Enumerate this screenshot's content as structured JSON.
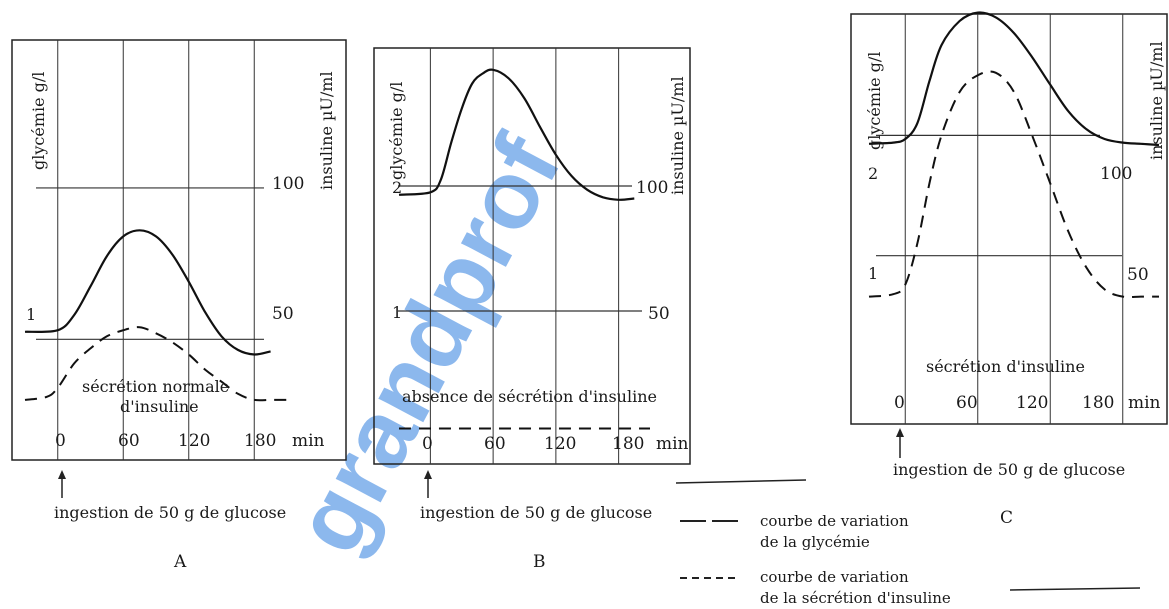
{
  "watermark": "grandprof",
  "legend": {
    "solid_label_1": "courbe de variation",
    "solid_label_2": "de la glycémie",
    "dashed_label_1": "courbe de variation",
    "dashed_label_2": "de la sécrétion d'insuline"
  },
  "chart_data": [
    {
      "panel_letter": "A",
      "type": "line",
      "ylabel_left": "glycémie g/l",
      "ylabel_right": "insuline µU/ml",
      "xunit": "min",
      "x_ticks": [
        "0",
        "60",
        "120",
        "180"
      ],
      "left_ticks": [
        "1"
      ],
      "right_ticks": [
        "50",
        "100"
      ],
      "annotation_1": "sécrétion normale",
      "annotation_2": "d'insuline",
      "arrow_label": "ingestion de 50 g de glucose",
      "xlim": [
        -30,
        210
      ],
      "ylim_glycemie": [
        0.5,
        2.7
      ],
      "ylim_insuline": [
        25,
        135
      ],
      "series": [
        {
          "style": "solid",
          "axis": "glycemie",
          "x": [
            -30,
            0,
            15,
            30,
            45,
            60,
            75,
            90,
            105,
            120,
            135,
            150,
            165,
            180,
            195
          ],
          "y": [
            1.05,
            1.06,
            1.16,
            1.35,
            1.55,
            1.68,
            1.72,
            1.68,
            1.56,
            1.38,
            1.18,
            1.02,
            0.93,
            0.9,
            0.92
          ]
        },
        {
          "style": "dashed",
          "axis": "insuline",
          "x": [
            -30,
            -10,
            0,
            15,
            30,
            45,
            60,
            75,
            90,
            105,
            120,
            135,
            150,
            165,
            180,
            195,
            210
          ],
          "y": [
            30,
            31,
            34,
            42,
            47,
            51,
            53,
            54,
            52,
            49,
            45,
            40,
            36,
            32,
            30,
            30,
            30
          ]
        }
      ]
    },
    {
      "panel_letter": "B",
      "type": "line",
      "ylabel_left": "glycémie g/l",
      "ylabel_right": "insuline µU/ml",
      "xunit": "min",
      "x_ticks": [
        "0",
        "60",
        "120",
        "180"
      ],
      "left_ticks": [
        "1",
        "2"
      ],
      "right_ticks": [
        "50",
        "100"
      ],
      "annotation_1": "absence de sécrétion d'insuline",
      "arrow_label": "ingestion de 50 g de glucose",
      "xlim": [
        -30,
        210
      ],
      "ylim_glycemie": [
        0,
        3.0
      ],
      "ylim_insuline": [
        0,
        150
      ],
      "series": [
        {
          "style": "solid",
          "axis": "glycemie",
          "x": [
            -30,
            0,
            10,
            20,
            30,
            40,
            50,
            60,
            75,
            90,
            105,
            120,
            135,
            150,
            165,
            180,
            195
          ],
          "y": [
            1.93,
            1.95,
            2.05,
            2.35,
            2.62,
            2.82,
            2.9,
            2.93,
            2.86,
            2.7,
            2.47,
            2.25,
            2.08,
            1.97,
            1.91,
            1.89,
            1.9
          ]
        },
        {
          "style": "dashed",
          "axis": "insuline",
          "x": [
            -30,
            0,
            30,
            60,
            90,
            120,
            150,
            180,
            210
          ],
          "y": [
            3,
            3,
            3,
            3,
            3,
            3,
            3,
            3,
            3
          ]
        }
      ]
    },
    {
      "panel_letter": "C",
      "type": "line",
      "ylabel_left": "glycémie g/l",
      "ylabel_right": "insuline µU/ml",
      "xunit": "min",
      "x_ticks": [
        "0",
        "60",
        "120",
        "180"
      ],
      "left_ticks": [
        "1",
        "2"
      ],
      "right_ticks": [
        "50",
        "100"
      ],
      "annotation_1": "sécrétion d'insuline",
      "arrow_label": "ingestion de 50 g de glucose",
      "xlim": [
        -30,
        210
      ],
      "ylim_glycemie": [
        0,
        3.1
      ],
      "ylim_insuline": [
        0,
        155
      ],
      "series": [
        {
          "style": "solid",
          "axis": "glycemie",
          "x": [
            -30,
            -10,
            0,
            10,
            20,
            30,
            45,
            60,
            75,
            90,
            105,
            120,
            135,
            150,
            165,
            180,
            195,
            210
          ],
          "y": [
            1.93,
            1.94,
            1.97,
            2.1,
            2.45,
            2.75,
            2.95,
            3.02,
            2.98,
            2.85,
            2.65,
            2.42,
            2.2,
            2.05,
            1.97,
            1.94,
            1.93,
            1.92
          ]
        },
        {
          "style": "dashed",
          "axis": "insuline",
          "x": [
            -30,
            -10,
            0,
            10,
            20,
            30,
            45,
            60,
            75,
            90,
            105,
            120,
            135,
            150,
            165,
            180,
            195,
            210
          ],
          "y": [
            33,
            34,
            38,
            55,
            80,
            100,
            118,
            125,
            126,
            118,
            100,
            80,
            60,
            45,
            36,
            33,
            33,
            33
          ]
        }
      ]
    }
  ]
}
